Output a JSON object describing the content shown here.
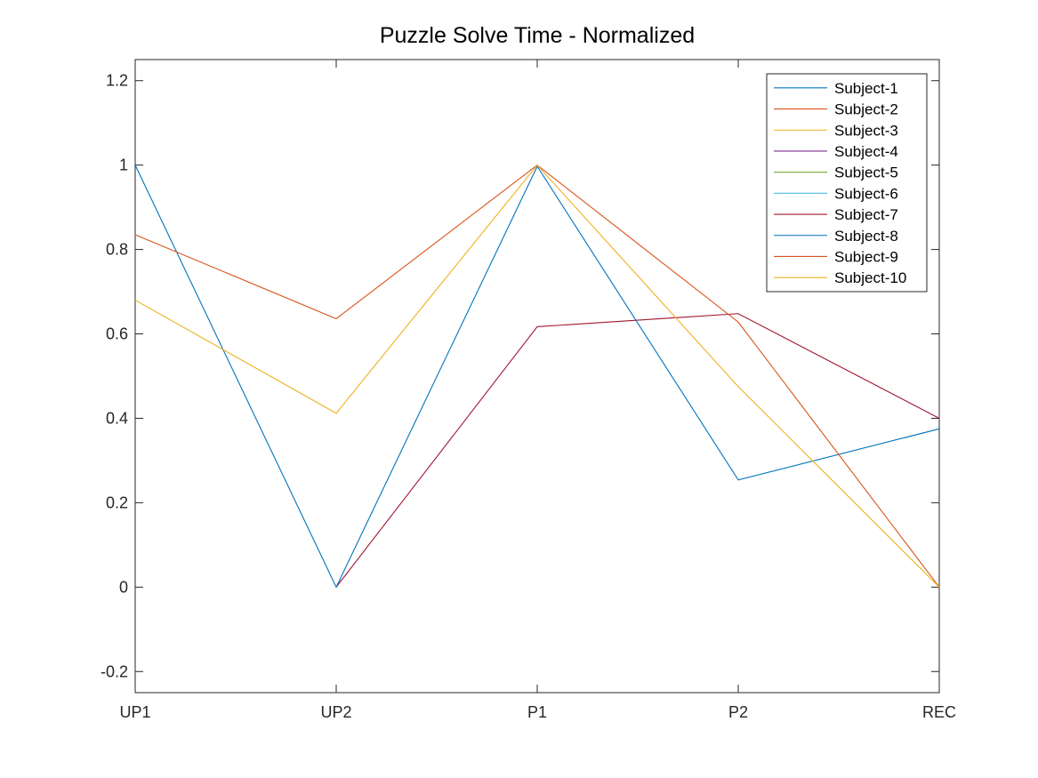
{
  "chart_data": {
    "type": "line",
    "title": "Puzzle Solve Time - Normalized",
    "xlabel": "",
    "ylabel": "",
    "categories": [
      "UP1",
      "UP2",
      "P1",
      "P2",
      "REC"
    ],
    "ylim": [
      -0.25,
      1.25
    ],
    "yticks": [
      -0.2,
      0,
      0.2,
      0.4,
      0.6,
      0.8,
      1,
      1.2
    ],
    "ytick_labels": [
      "-0.2",
      "0",
      "0.2",
      "0.4",
      "0.6",
      "0.8",
      "1",
      "1.2"
    ],
    "grid": false,
    "legend_position": "top-right",
    "series": [
      {
        "name": "Subject-1",
        "color": "#0072BD",
        "values": [
          null,
          null,
          null,
          null,
          null
        ]
      },
      {
        "name": "Subject-2",
        "color": "#D95319",
        "values": [
          null,
          null,
          null,
          null,
          null
        ]
      },
      {
        "name": "Subject-3",
        "color": "#EDB120",
        "values": [
          null,
          null,
          null,
          null,
          null
        ]
      },
      {
        "name": "Subject-4",
        "color": "#7E2F8E",
        "values": [
          null,
          null,
          null,
          null,
          null
        ]
      },
      {
        "name": "Subject-5",
        "color": "#77AC30",
        "values": [
          null,
          null,
          null,
          null,
          null
        ]
      },
      {
        "name": "Subject-6",
        "color": "#4DBEEE",
        "values": [
          null,
          null,
          null,
          null,
          null
        ]
      },
      {
        "name": "Subject-7",
        "color": "#A2142F",
        "values": [
          null,
          0,
          0.617,
          0.648,
          0.4
        ]
      },
      {
        "name": "Subject-8",
        "color": "#0072BD",
        "values": [
          1.0,
          0,
          0.997,
          0.254,
          0.375
        ]
      },
      {
        "name": "Subject-9",
        "color": "#D95319",
        "values": [
          0.835,
          0.636,
          1.0,
          0.628,
          0.0
        ]
      },
      {
        "name": "Subject-10",
        "color": "#EDB120",
        "values": [
          0.68,
          0.412,
          1.0,
          0.475,
          0.0
        ]
      }
    ]
  }
}
